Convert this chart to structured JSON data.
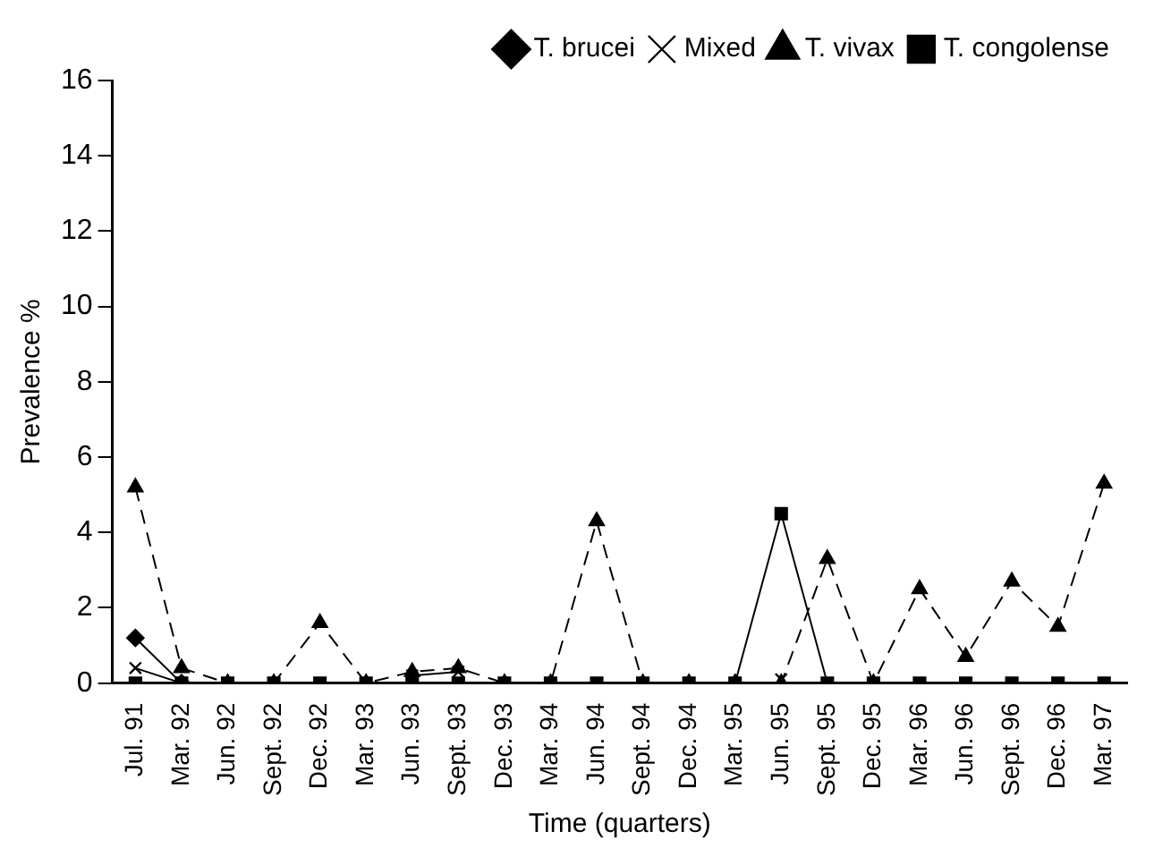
{
  "chart_data": {
    "type": "line",
    "xlabel": "Time (quarters)",
    "ylabel": "Prevalence %",
    "categories": [
      "Jul. 91",
      "Mar. 92",
      "Jun. 92",
      "Sept. 92",
      "Dec. 92",
      "Mar. 93",
      "Jun. 93",
      "Sept. 93",
      "Dec. 93",
      "Mar. 94",
      "Jun. 94",
      "Sept. 94",
      "Dec. 94",
      "Mar. 95",
      "Jun. 95",
      "Sept. 95",
      "Dec. 95",
      "Mar. 96",
      "Jun. 96",
      "Sept. 96",
      "Dec. 96",
      "Mar. 97"
    ],
    "series": [
      {
        "name": "T. brucei",
        "color": "#000000",
        "marker": "diamond",
        "line_style": "solid",
        "values": [
          1.2,
          0,
          null,
          null,
          null,
          null,
          null,
          null,
          null,
          null,
          null,
          null,
          null,
          null,
          null,
          null,
          null,
          null,
          null,
          null,
          null,
          null
        ]
      },
      {
        "name": "T. congolense",
        "color": "#000000",
        "marker": "square",
        "line_style": "solid",
        "values": [
          0,
          0,
          0,
          0,
          0,
          0,
          0,
          0,
          0,
          0,
          0,
          0,
          0,
          0,
          4.5,
          0,
          0,
          0,
          0,
          0,
          0,
          0
        ]
      },
      {
        "name": "T. vivax",
        "color": "#000000",
        "marker": "triangle",
        "line_style": "dashed",
        "values": [
          5.2,
          0.4,
          0,
          0,
          1.6,
          0,
          0.3,
          0.4,
          0,
          0,
          4.3,
          0,
          0,
          0,
          0,
          3.3,
          0,
          2.5,
          0.7,
          2.7,
          1.5,
          5.3
        ]
      },
      {
        "name": "Mixed",
        "color": "#000000",
        "marker": "cross",
        "line_style": "solid",
        "values": [
          0.4,
          0,
          null,
          null,
          null,
          null,
          0.2,
          0.3,
          null,
          null,
          null,
          null,
          null,
          null,
          0.1,
          null,
          null,
          null,
          null,
          null,
          null,
          null
        ]
      }
    ],
    "ylim": [
      0,
      16
    ],
    "yticks": [
      0,
      2,
      4,
      6,
      8,
      10,
      12,
      14,
      16
    ],
    "grid": false,
    "legend": "top right"
  }
}
